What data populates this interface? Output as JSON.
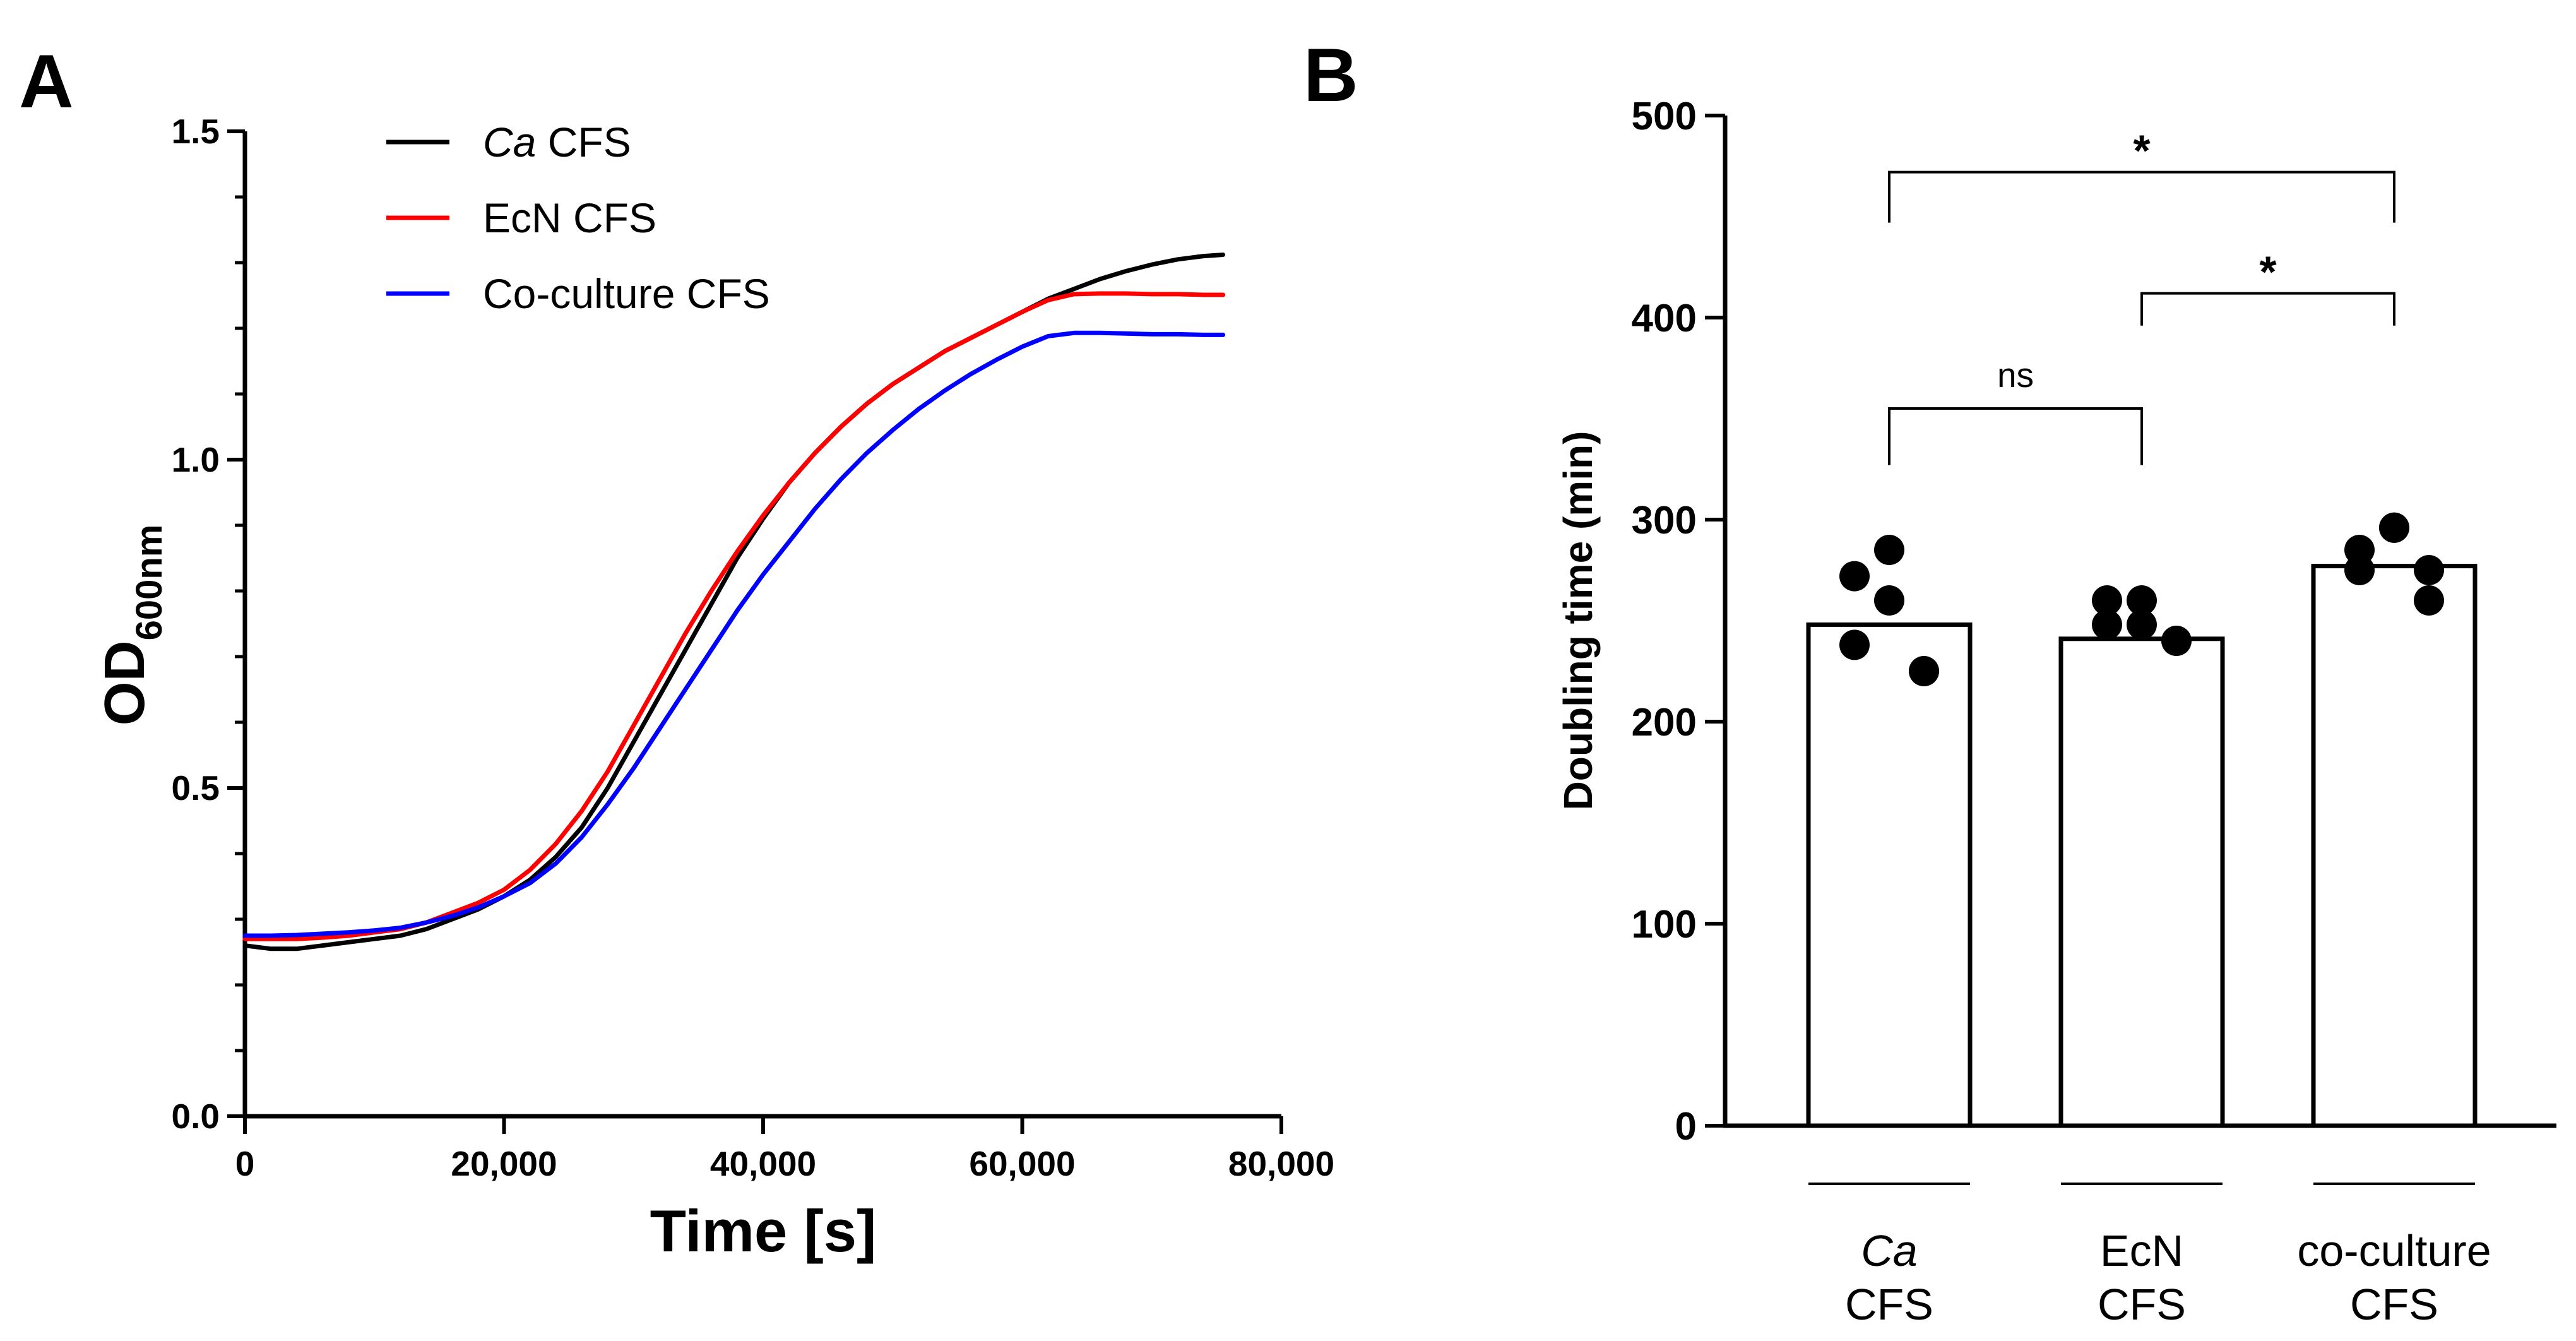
{
  "panels": {
    "a": {
      "letter": "A",
      "chart_data": {
        "type": "line",
        "title": "",
        "xlabel": "Time [s]",
        "ylabel_main": "OD",
        "ylabel_sub": "600nm",
        "xlim": [
          0,
          80000
        ],
        "ylim": [
          0,
          1.5
        ],
        "xticks": [
          0,
          20000,
          40000,
          60000,
          80000
        ],
        "xtick_labels": [
          "0",
          "20,000",
          "40,000",
          "60,000",
          "80,000"
        ],
        "yticks": [
          0,
          0.5,
          1.0,
          1.5
        ],
        "ytick_labels": [
          "0.0",
          "0.5",
          "1.0",
          "1.5"
        ],
        "grid": false,
        "legend_position": "top-left",
        "series": [
          {
            "name_italic": "Ca",
            "name_rest": " CFS",
            "color": "#000000",
            "x": [
              0,
              2000,
              4000,
              6000,
              8000,
              10000,
              12000,
              14000,
              16000,
              18000,
              20000,
              22000,
              24000,
              26000,
              28000,
              30000,
              32000,
              34000,
              36000,
              38000,
              40000,
              42000,
              44000,
              46000,
              48000,
              50000,
              52000,
              54000,
              56000,
              58000,
              60000,
              62000,
              64000,
              66000,
              68000,
              70000,
              72000,
              74000,
              75500
            ],
            "y": [
              0.26,
              0.255,
              0.255,
              0.26,
              0.265,
              0.27,
              0.275,
              0.285,
              0.3,
              0.315,
              0.335,
              0.36,
              0.395,
              0.44,
              0.5,
              0.57,
              0.64,
              0.71,
              0.78,
              0.85,
              0.91,
              0.965,
              1.01,
              1.05,
              1.085,
              1.115,
              1.14,
              1.165,
              1.185,
              1.205,
              1.225,
              1.245,
              1.26,
              1.275,
              1.287,
              1.297,
              1.305,
              1.31,
              1.312
            ]
          },
          {
            "name_italic": "",
            "name_rest": "EcN CFS",
            "color": "#ff0000",
            "x": [
              0,
              2000,
              4000,
              6000,
              8000,
              10000,
              12000,
              14000,
              16000,
              18000,
              20000,
              22000,
              24000,
              26000,
              28000,
              30000,
              32000,
              34000,
              36000,
              38000,
              40000,
              42000,
              44000,
              46000,
              48000,
              50000,
              52000,
              54000,
              56000,
              58000,
              60000,
              62000,
              64000,
              66000,
              68000,
              70000,
              72000,
              74000,
              75500
            ],
            "y": [
              0.27,
              0.27,
              0.27,
              0.272,
              0.275,
              0.28,
              0.285,
              0.295,
              0.31,
              0.325,
              0.345,
              0.375,
              0.415,
              0.465,
              0.525,
              0.595,
              0.665,
              0.735,
              0.8,
              0.86,
              0.915,
              0.965,
              1.01,
              1.05,
              1.085,
              1.115,
              1.14,
              1.165,
              1.185,
              1.205,
              1.225,
              1.243,
              1.252,
              1.253,
              1.253,
              1.252,
              1.252,
              1.251,
              1.251
            ]
          },
          {
            "name_italic": "",
            "name_rest": "Co-culture CFS",
            "color": "#0000ff",
            "x": [
              0,
              2000,
              4000,
              6000,
              8000,
              10000,
              12000,
              14000,
              16000,
              18000,
              20000,
              22000,
              24000,
              26000,
              28000,
              30000,
              32000,
              34000,
              36000,
              38000,
              40000,
              42000,
              44000,
              46000,
              48000,
              50000,
              52000,
              54000,
              56000,
              58000,
              60000,
              62000,
              64000,
              66000,
              68000,
              70000,
              72000,
              74000,
              75500
            ],
            "y": [
              0.275,
              0.275,
              0.276,
              0.278,
              0.28,
              0.283,
              0.287,
              0.295,
              0.305,
              0.318,
              0.335,
              0.355,
              0.385,
              0.425,
              0.475,
              0.53,
              0.59,
              0.65,
              0.71,
              0.77,
              0.825,
              0.875,
              0.925,
              0.97,
              1.01,
              1.045,
              1.077,
              1.105,
              1.13,
              1.152,
              1.172,
              1.188,
              1.193,
              1.193,
              1.192,
              1.191,
              1.191,
              1.19,
              1.19
            ]
          }
        ]
      }
    },
    "b": {
      "letter": "B",
      "chart_data": {
        "type": "bar",
        "title": "",
        "ylabel": "Doubling time (min)",
        "ylim": [
          0,
          500
        ],
        "yticks": [
          0,
          100,
          200,
          300,
          400,
          500
        ],
        "ytick_labels": [
          "0",
          "100",
          "200",
          "300",
          "400",
          "500"
        ],
        "grid": false,
        "categories": [
          {
            "line1_italic": "Ca",
            "line1_rest": "",
            "line2": "CFS"
          },
          {
            "line1_italic": "",
            "line1_rest": "EcN",
            "line2": "CFS"
          },
          {
            "line1_italic": "",
            "line1_rest": "co-culture",
            "line2": "CFS"
          }
        ],
        "values": [
          248,
          241,
          277
        ],
        "points": [
          [
            272,
            285,
            260,
            238,
            225,
            225
          ],
          [
            260,
            260,
            248,
            248,
            240,
            240
          ],
          [
            285,
            296,
            296,
            275,
            260,
            275
          ]
        ],
        "comparisons": [
          {
            "from": 0,
            "to": 1,
            "label": "ns",
            "y": 355,
            "drop": 28
          },
          {
            "from": 1,
            "to": 2,
            "label": "*",
            "y": 412,
            "drop": 16
          },
          {
            "from": 0,
            "to": 2,
            "label": "*",
            "y": 472,
            "drop": 25
          }
        ]
      }
    }
  }
}
